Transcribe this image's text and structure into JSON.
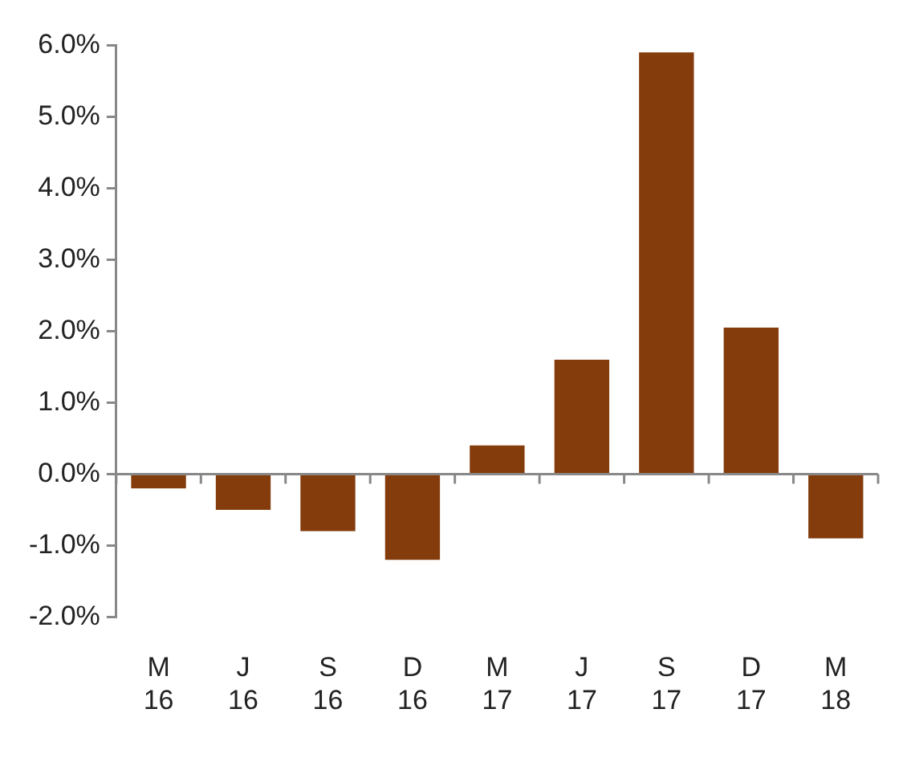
{
  "chart_data": {
    "type": "bar",
    "categories": [
      "M 16",
      "J 16",
      "S 16",
      "D 16",
      "M 17",
      "J 17",
      "S 17",
      "D 17",
      "M 18"
    ],
    "values": [
      -0.2,
      -0.5,
      -0.8,
      -1.2,
      0.4,
      1.6,
      5.9,
      2.05,
      -0.9
    ],
    "color": "#843c0c",
    "ylim": [
      -2,
      6
    ],
    "yticks": [
      {
        "value": -2,
        "label": "-2.0%"
      },
      {
        "value": -1,
        "label": "-1.0%"
      },
      {
        "value": 0,
        "label": "0.0%"
      },
      {
        "value": 1,
        "label": "1.0%"
      },
      {
        "value": 2,
        "label": "2.0%"
      },
      {
        "value": 3,
        "label": "3.0%"
      },
      {
        "value": 4,
        "label": "4.0%"
      },
      {
        "value": 5,
        "label": "5.0%"
      },
      {
        "value": 6,
        "label": "6.0%"
      }
    ],
    "ref_lines": [
      {
        "axis": "y",
        "value": 0,
        "color": "#888888"
      }
    ],
    "grid": false,
    "legend": false
  }
}
